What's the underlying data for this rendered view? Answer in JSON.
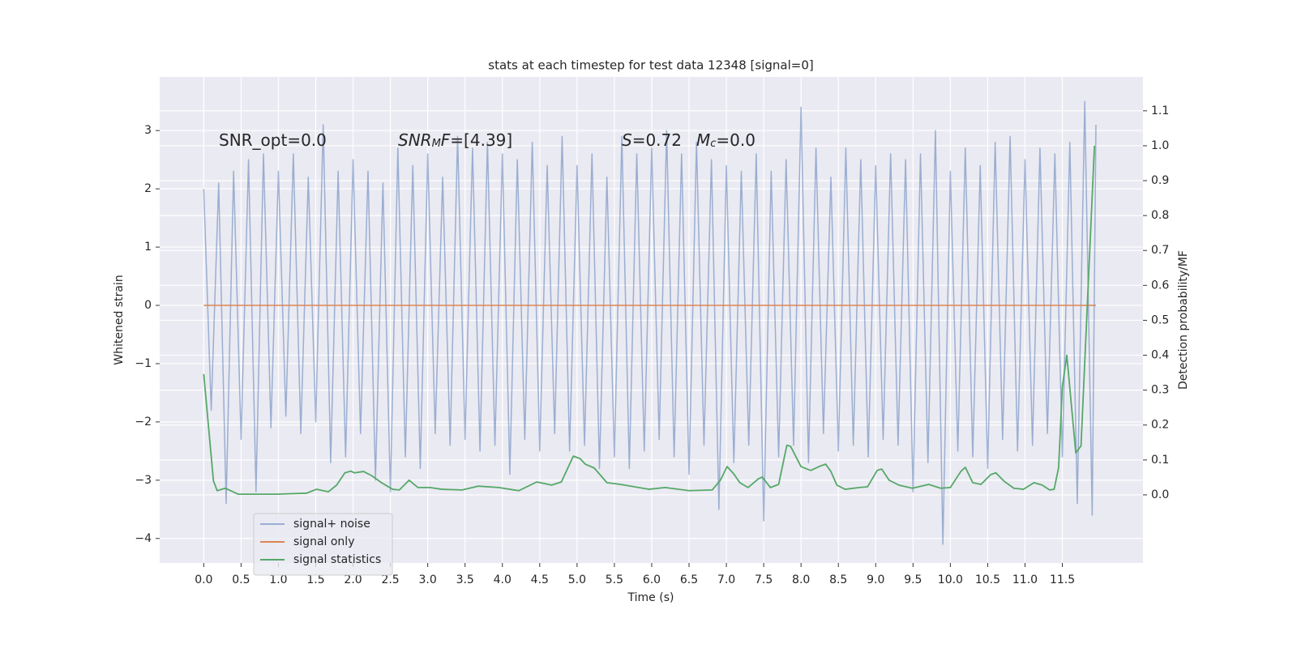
{
  "chart_data": {
    "type": "line",
    "title": "stats at each timestep for test data 12348 [signal=0]",
    "xlabel": "Time (s)",
    "ylabel": "Whitened strain",
    "y2label": "Detection probability/MF",
    "xlim": [
      -0.59,
      12.58
    ],
    "ylim": [
      -4.42,
      3.92
    ],
    "y2lim": [
      -0.195,
      1.197
    ],
    "xticks": [
      {
        "value": 0,
        "label": "0.0"
      },
      0.5,
      {
        "value": 1,
        "label": "1.0"
      },
      1.5,
      {
        "value": 2,
        "label": "2.0"
      },
      2.5,
      {
        "value": 3,
        "label": "3.0"
      },
      3.5,
      {
        "value": 4,
        "label": "4.0"
      },
      4.5,
      {
        "value": 5,
        "label": "5.0"
      },
      5.5,
      {
        "value": 6,
        "label": "6.0"
      },
      6.5,
      {
        "value": 7,
        "label": "7.0"
      },
      7.5,
      {
        "value": 8,
        "label": "8.0"
      },
      8.5,
      {
        "value": 9,
        "label": "9.0"
      },
      9.5,
      {
        "value": 10,
        "label": "10.0"
      },
      10.5,
      {
        "value": 11,
        "label": "11.0"
      },
      11.5
    ],
    "yticks": [
      {
        "value": -4,
        "label": "−4"
      },
      {
        "value": -3,
        "label": "−3"
      },
      {
        "value": -2,
        "label": "−2"
      },
      {
        "value": -1,
        "label": "−1"
      },
      0,
      1,
      2,
      3
    ],
    "y2ticks": [
      {
        "value": 0,
        "label": "0.0"
      },
      0.1,
      0.2,
      0.3,
      0.4,
      0.5,
      0.6,
      0.7,
      0.8,
      0.9,
      {
        "value": 1,
        "label": "1.0"
      },
      1.1
    ],
    "grid": true,
    "legend": "lower left",
    "annotations": [
      [
        {
          "text": "SNR_opt=0.0"
        }
      ],
      [
        {
          "text": "SNR",
          "italic": true
        },
        {
          "text": "M",
          "italic": true,
          "sub": true
        },
        {
          "text": "F",
          "italic": true
        },
        {
          "text": "=[4.39]"
        }
      ],
      [
        {
          "text": "S",
          "italic": true
        },
        {
          "text": "=0.72"
        }
      ],
      [
        {
          "text": "M",
          "italic": true
        },
        {
          "text": "c",
          "italic": true,
          "sub": true
        },
        {
          "text": "=0.0"
        }
      ]
    ],
    "series": [
      {
        "name": "signal+ noise",
        "color": "#4c72b0",
        "alpha": 0.5,
        "x": [
          0,
          0.1,
          0.2,
          0.3,
          0.4,
          0.5,
          0.6,
          0.7,
          0.8,
          0.9,
          1,
          1.1,
          1.2,
          1.3,
          1.4,
          1.5,
          1.6,
          1.7,
          1.8,
          1.9,
          2,
          2.1,
          2.2,
          2.3,
          2.4,
          2.5,
          2.6,
          2.7,
          2.8,
          2.9,
          3,
          3.1,
          3.2,
          3.3,
          3.4,
          3.5,
          3.6,
          3.7,
          3.8,
          3.9,
          4,
          4.1,
          4.2,
          4.3,
          4.4,
          4.5,
          4.6,
          4.7,
          4.8,
          4.9,
          5,
          5.1,
          5.2,
          5.3,
          5.4,
          5.5,
          5.6,
          5.7,
          5.8,
          5.9,
          6,
          6.1,
          6.2,
          6.3,
          6.4,
          6.5,
          6.6,
          6.7,
          6.8,
          6.9,
          7,
          7.1,
          7.2,
          7.3,
          7.4,
          7.5,
          7.6,
          7.7,
          7.8,
          7.9,
          8,
          8.1,
          8.2,
          8.3,
          8.4,
          8.5,
          8.6,
          8.7,
          8.8,
          8.9,
          9,
          9.1,
          9.2,
          9.3,
          9.4,
          9.5,
          9.6,
          9.7,
          9.8,
          9.9,
          10,
          10.1,
          10.2,
          10.3,
          10.4,
          10.5,
          10.6,
          10.7,
          10.8,
          10.9,
          11,
          11.1,
          11.2,
          11.3,
          11.4,
          11.5,
          11.6,
          11.7,
          11.8,
          11.9,
          11.95
        ],
        "values": [
          2.0,
          -1.8,
          2.1,
          -3.4,
          2.3,
          -2.3,
          2.5,
          -3.2,
          2.6,
          -2.1,
          2.3,
          -1.9,
          2.6,
          -2.2,
          2.2,
          -2.0,
          3.1,
          -2.7,
          2.3,
          -2.6,
          2.5,
          -2.2,
          2.3,
          -3.0,
          2.1,
          -3.2,
          2.7,
          -2.6,
          2.4,
          -2.8,
          2.6,
          -2.2,
          2.2,
          -2.4,
          2.9,
          -2.3,
          2.7,
          -2.5,
          2.8,
          -2.4,
          2.6,
          -2.9,
          2.5,
          -2.3,
          2.8,
          -2.5,
          2.4,
          -2.2,
          2.9,
          -2.5,
          2.4,
          -2.4,
          2.6,
          -2.8,
          2.2,
          -2.6,
          2.9,
          -2.8,
          2.6,
          -2.5,
          2.7,
          -2.3,
          3.0,
          -2.6,
          2.6,
          -2.9,
          2.8,
          -2.4,
          2.5,
          -3.5,
          2.4,
          -2.7,
          2.3,
          -2.4,
          2.6,
          -3.7,
          2.3,
          -2.6,
          2.5,
          -2.4,
          3.4,
          -2.7,
          2.7,
          -2.2,
          2.2,
          -2.5,
          2.7,
          -2.4,
          2.5,
          -2.6,
          2.4,
          -2.3,
          2.6,
          -2.4,
          2.5,
          -3.2,
          2.6,
          -2.7,
          3.0,
          -4.1,
          2.3,
          -2.5,
          2.7,
          -2.6,
          2.4,
          -2.8,
          2.8,
          -2.3,
          2.9,
          -2.5,
          2.5,
          -2.4,
          2.7,
          -2.2,
          2.6,
          -2.6,
          2.8,
          -3.4,
          3.5,
          -3.6,
          3.1
        ]
      },
      {
        "name": "signal only",
        "color": "#dd8452",
        "alpha": 1,
        "x": [
          0,
          11.95
        ],
        "values": [
          0,
          0
        ]
      },
      {
        "name": "signal statistics",
        "color": "#55a868",
        "alpha": 1,
        "axis": "y2",
        "x": [
          0,
          0.13,
          0.18,
          0.29,
          0.46,
          0.97,
          1.38,
          1.51,
          1.67,
          1.78,
          1.89,
          1.97,
          2.02,
          2.14,
          2.25,
          2.38,
          2.53,
          2.62,
          2.75,
          2.87,
          3.03,
          3.19,
          3.46,
          3.68,
          3.95,
          4.22,
          4.46,
          4.66,
          4.79,
          4.95,
          5.04,
          5.11,
          5.23,
          5.4,
          5.58,
          5.96,
          6.18,
          6.5,
          6.81,
          6.92,
          7.01,
          7.1,
          7.18,
          7.29,
          7.43,
          7.48,
          7.59,
          7.7,
          7.81,
          7.86,
          8,
          8.13,
          8.24,
          8.33,
          8.4,
          8.48,
          8.59,
          8.78,
          8.89,
          9.02,
          9.08,
          9.18,
          9.31,
          9.49,
          9.71,
          9.87,
          10,
          10.14,
          10.2,
          10.3,
          10.41,
          10.54,
          10.61,
          10.72,
          10.85,
          10.98,
          11.12,
          11.23,
          11.33,
          11.39,
          11.45,
          11.5,
          11.56,
          11.68,
          11.75,
          11.93
        ],
        "values": [
          0.346,
          0.04,
          0.012,
          0.019,
          0.002,
          0.002,
          0.005,
          0.016,
          0.009,
          0.028,
          0.063,
          0.068,
          0.063,
          0.067,
          0.055,
          0.035,
          0.016,
          0.014,
          0.042,
          0.021,
          0.021,
          0.016,
          0.014,
          0.025,
          0.021,
          0.012,
          0.037,
          0.028,
          0.037,
          0.111,
          0.104,
          0.088,
          0.077,
          0.035,
          0.03,
          0.016,
          0.021,
          0.012,
          0.014,
          0.042,
          0.081,
          0.06,
          0.035,
          0.021,
          0.046,
          0.051,
          0.021,
          0.03,
          0.142,
          0.139,
          0.081,
          0.07,
          0.081,
          0.088,
          0.067,
          0.028,
          0.016,
          0.021,
          0.023,
          0.07,
          0.074,
          0.042,
          0.028,
          0.019,
          0.03,
          0.019,
          0.021,
          0.067,
          0.079,
          0.035,
          0.03,
          0.058,
          0.063,
          0.039,
          0.019,
          0.016,
          0.035,
          0.028,
          0.014,
          0.016,
          0.078,
          0.31,
          0.4,
          0.12,
          0.14,
          1.0
        ]
      }
    ]
  }
}
